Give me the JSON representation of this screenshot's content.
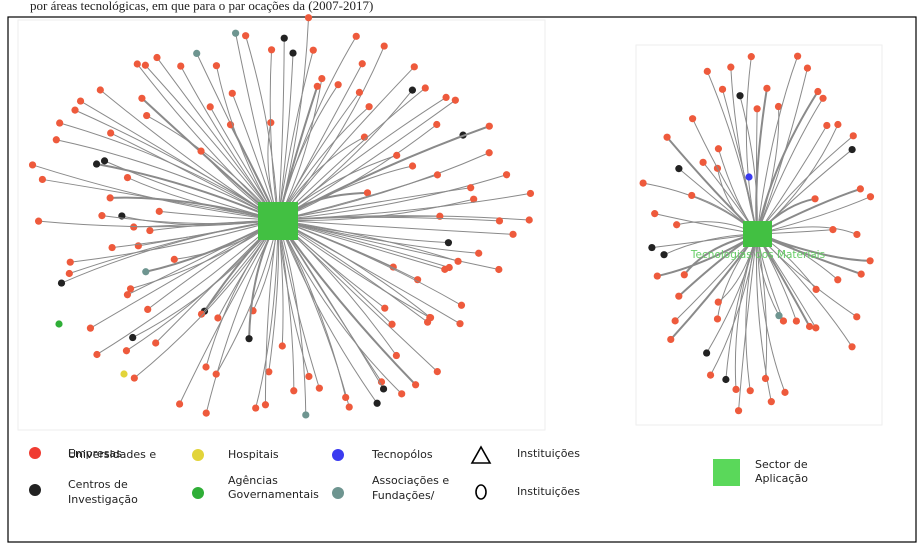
{
  "caption": "por áreas tecnológicas, em que para o par ocações da (2007-2017)",
  "networks": {
    "right_label": "Tecnologias dos Materiais"
  },
  "legend": {
    "empresas": "Empresas",
    "universidades": [
      "Universidades e",
      "Centros de",
      "Investigação"
    ],
    "hospitais": "Hospitais",
    "agencias": [
      "Agências",
      "Governamentais"
    ],
    "tecnopolos": "Tecnopólos",
    "associacoes": [
      "Associações e",
      "Fundações/"
    ],
    "instituicoes_triangle": "Instituições",
    "instituicoes_circle": "Instituições",
    "sector": [
      "Sector de",
      "Aplicação"
    ]
  }
}
